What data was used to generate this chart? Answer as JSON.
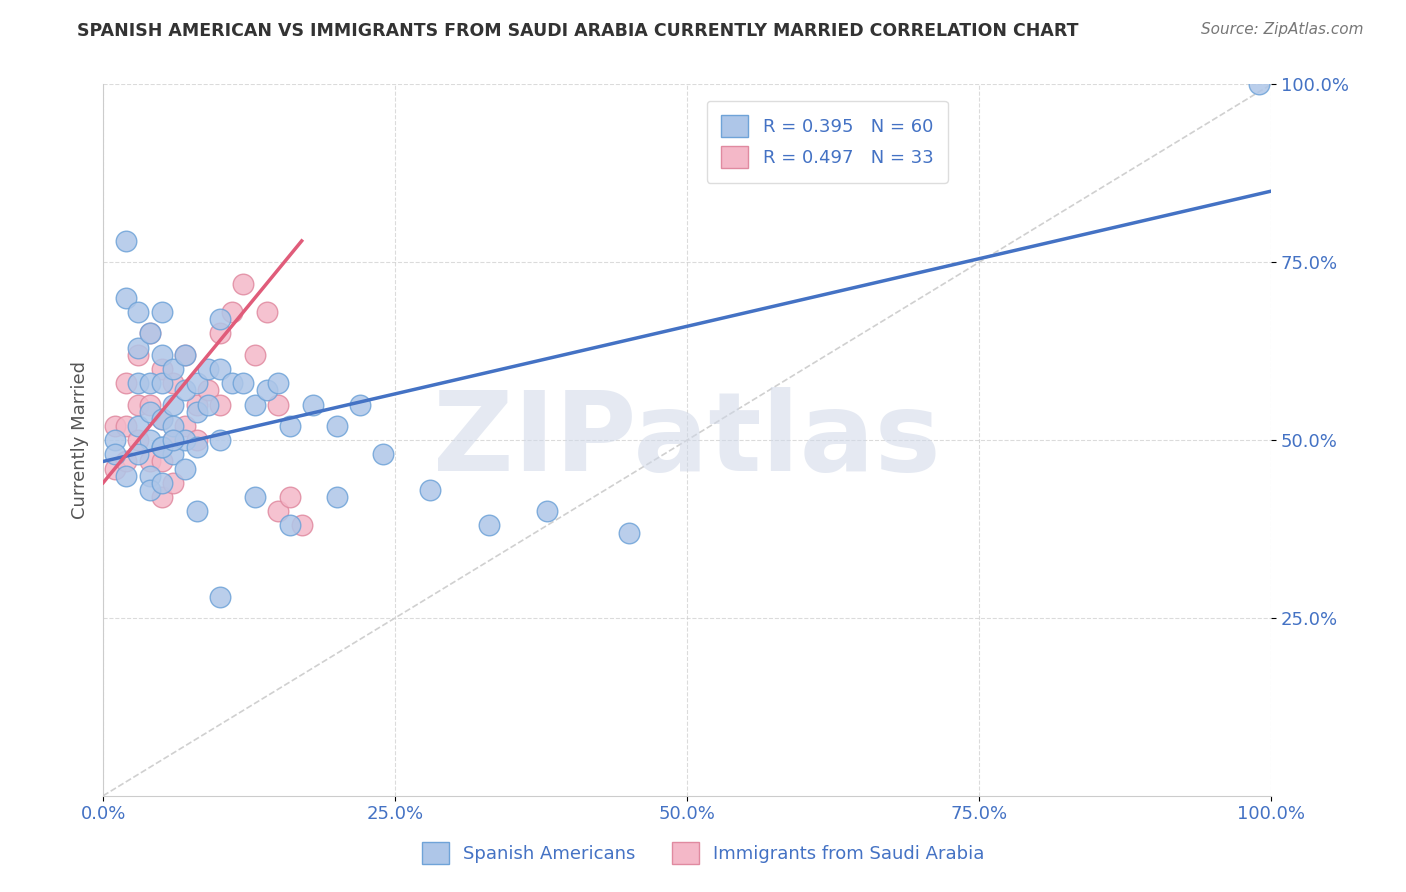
{
  "title": "SPANISH AMERICAN VS IMMIGRANTS FROM SAUDI ARABIA CURRENTLY MARRIED CORRELATION CHART",
  "source": "Source: ZipAtlas.com",
  "ylabel": "Currently Married",
  "x_min": 0.0,
  "x_max": 1.0,
  "y_min": 0.0,
  "y_max": 1.0,
  "x_ticks": [
    0.0,
    0.25,
    0.5,
    0.75,
    1.0
  ],
  "y_ticks": [
    0.25,
    0.5,
    0.75,
    1.0
  ],
  "x_tick_labels": [
    "0.0%",
    "25.0%",
    "50.0%",
    "75.0%",
    "100.0%"
  ],
  "y_tick_labels": [
    "25.0%",
    "50.0%",
    "75.0%",
    "100.0%"
  ],
  "legend1_label": "R = 0.395   N = 60",
  "legend2_label": "R = 0.497   N = 33",
  "legend1_color": "#aec6e8",
  "legend2_color": "#f4b8c8",
  "line1_color": "#4472C4",
  "line2_color": "#E05C7A",
  "dot1_color": "#aec6e8",
  "dot2_color": "#f4b8c8",
  "dot1_edge": "#6fa3d8",
  "dot2_edge": "#e08aa0",
  "watermark": "ZIPatlas",
  "watermark_color": "#d0d8e8",
  "title_color": "#333333",
  "axis_label_color": "#555555",
  "tick_color": "#4472C4",
  "background_color": "#ffffff",
  "grid_color": "#cccccc",
  "blue_x": [
    0.01,
    0.02,
    0.02,
    0.03,
    0.03,
    0.03,
    0.03,
    0.04,
    0.04,
    0.04,
    0.04,
    0.05,
    0.05,
    0.05,
    0.05,
    0.05,
    0.06,
    0.06,
    0.06,
    0.06,
    0.07,
    0.07,
    0.07,
    0.08,
    0.08,
    0.08,
    0.09,
    0.09,
    0.1,
    0.1,
    0.1,
    0.11,
    0.12,
    0.13,
    0.14,
    0.15,
    0.16,
    0.18,
    0.2,
    0.22,
    0.01,
    0.02,
    0.03,
    0.04,
    0.04,
    0.05,
    0.05,
    0.06,
    0.07,
    0.08,
    0.1,
    0.13,
    0.16,
    0.2,
    0.24,
    0.28,
    0.33,
    0.38,
    0.45,
    0.99
  ],
  "blue_y": [
    0.5,
    0.78,
    0.7,
    0.68,
    0.63,
    0.58,
    0.52,
    0.65,
    0.58,
    0.54,
    0.5,
    0.68,
    0.62,
    0.58,
    0.53,
    0.49,
    0.6,
    0.55,
    0.52,
    0.48,
    0.62,
    0.57,
    0.5,
    0.58,
    0.54,
    0.49,
    0.6,
    0.55,
    0.67,
    0.6,
    0.5,
    0.58,
    0.58,
    0.55,
    0.57,
    0.58,
    0.52,
    0.55,
    0.52,
    0.55,
    0.48,
    0.45,
    0.48,
    0.45,
    0.43,
    0.49,
    0.44,
    0.5,
    0.46,
    0.4,
    0.28,
    0.42,
    0.38,
    0.42,
    0.48,
    0.43,
    0.38,
    0.4,
    0.37,
    1.0
  ],
  "pink_x": [
    0.01,
    0.01,
    0.02,
    0.02,
    0.02,
    0.03,
    0.03,
    0.03,
    0.04,
    0.04,
    0.04,
    0.05,
    0.05,
    0.05,
    0.05,
    0.06,
    0.06,
    0.06,
    0.07,
    0.07,
    0.08,
    0.08,
    0.09,
    0.1,
    0.1,
    0.11,
    0.12,
    0.13,
    0.14,
    0.15,
    0.15,
    0.16,
    0.17
  ],
  "pink_y": [
    0.52,
    0.46,
    0.58,
    0.52,
    0.47,
    0.62,
    0.55,
    0.5,
    0.65,
    0.55,
    0.47,
    0.6,
    0.53,
    0.47,
    0.42,
    0.58,
    0.5,
    0.44,
    0.62,
    0.52,
    0.55,
    0.5,
    0.57,
    0.65,
    0.55,
    0.68,
    0.72,
    0.62,
    0.68,
    0.55,
    0.4,
    0.42,
    0.38
  ],
  "blue_line_x": [
    0.0,
    1.0
  ],
  "blue_line_y": [
    0.47,
    0.85
  ],
  "pink_line_x": [
    0.0,
    0.17
  ],
  "pink_line_y": [
    0.44,
    0.78
  ],
  "diag_line_x": [
    0.0,
    1.0
  ],
  "diag_line_y": [
    0.0,
    1.0
  ],
  "figwidth": 14.06,
  "figheight": 8.92
}
